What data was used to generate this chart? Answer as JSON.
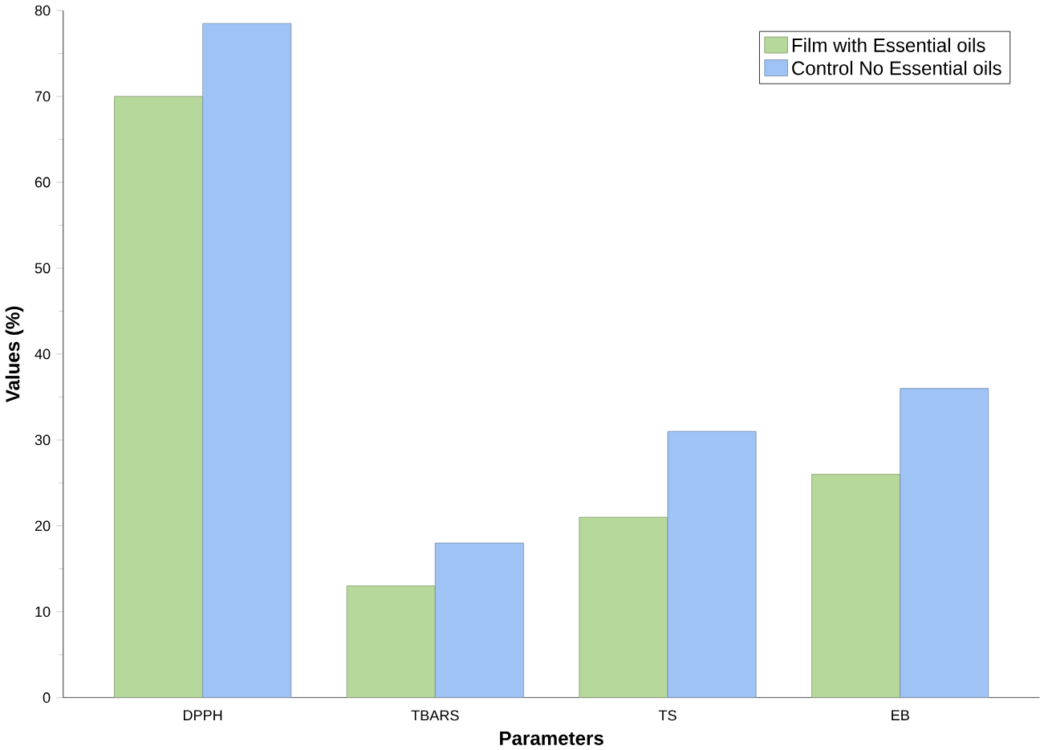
{
  "chart_data": {
    "type": "bar",
    "xlabel": "Parameters",
    "ylabel": "Values (%)",
    "categories": [
      "DPPH",
      "TBARS",
      "TS",
      "EB"
    ],
    "series": [
      {
        "name": "Film with Essential oils",
        "color": "#b6d89a",
        "values": [
          70,
          13,
          21,
          26
        ]
      },
      {
        "name": "Control No Essential oils",
        "color": "#9fc3f5",
        "values": [
          78.5,
          18,
          31,
          36
        ]
      }
    ],
    "ylim": [
      0,
      80
    ],
    "yticks": [
      0,
      10,
      20,
      30,
      40,
      50,
      60,
      70,
      80
    ],
    "legend": "top right",
    "grid": false
  }
}
